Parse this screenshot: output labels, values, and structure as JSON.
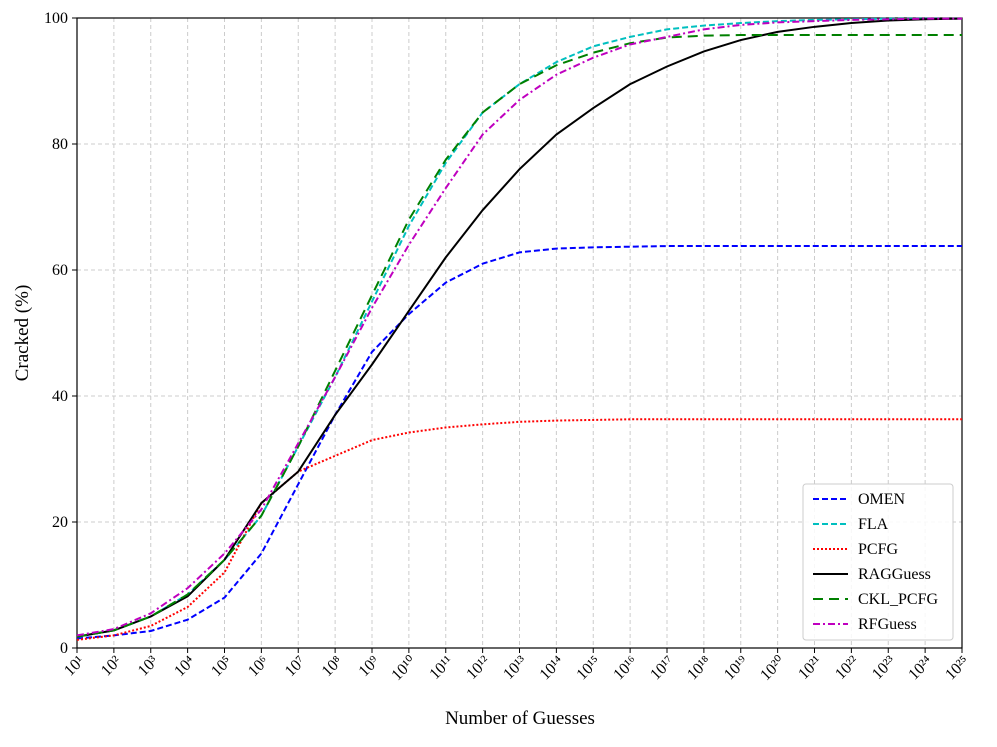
{
  "chart_data": {
    "type": "line",
    "xlabel": "Number of Guesses",
    "ylabel": "Cracked (%)",
    "xscale": "log",
    "grid": true,
    "legend": "lower right",
    "xlim": [
      10,
      1e+25
    ],
    "ylim": [
      0,
      100
    ],
    "yticks": [
      0,
      20,
      40,
      60,
      80,
      100
    ],
    "xticks": [
      {
        "value": 10.0,
        "label": "10¹"
      },
      {
        "value": 100.0,
        "label": "10²"
      },
      {
        "value": 1000.0,
        "label": "10³"
      },
      {
        "value": 10000.0,
        "label": "10⁴"
      },
      {
        "value": 100000.0,
        "label": "10⁵"
      },
      {
        "value": 1000000.0,
        "label": "10⁶"
      },
      {
        "value": 10000000.0,
        "label": "10⁷"
      },
      {
        "value": 100000000.0,
        "label": "10⁸"
      },
      {
        "value": 1000000000.0,
        "label": "10⁹"
      },
      {
        "value": 10000000000.0,
        "label": "10¹⁰"
      },
      {
        "value": 100000000000.0,
        "label": "10¹¹"
      },
      {
        "value": 1000000000000.0,
        "label": "10¹²"
      },
      {
        "value": 10000000000000.0,
        "label": "10¹³"
      },
      {
        "value": 100000000000000.0,
        "label": "10¹⁴"
      },
      {
        "value": 1000000000000000.0,
        "label": "10¹⁵"
      },
      {
        "value": 1e+16,
        "label": "10¹⁶"
      },
      {
        "value": 1e+17,
        "label": "10¹⁷"
      },
      {
        "value": 1e+18,
        "label": "10¹⁸"
      },
      {
        "value": 1e+19,
        "label": "10¹⁹"
      },
      {
        "value": 1e+20,
        "label": "10²⁰"
      },
      {
        "value": 1e+21,
        "label": "10²¹"
      },
      {
        "value": 1e+22,
        "label": "10²²"
      },
      {
        "value": 1e+23,
        "label": "10²³"
      },
      {
        "value": 1e+24,
        "label": "10²⁴"
      },
      {
        "value": 1e+25,
        "label": "10²⁵"
      }
    ],
    "x": [
      10.0,
      100.0,
      1000.0,
      10000.0,
      100000.0,
      1000000.0,
      10000000.0,
      100000000.0,
      1000000000.0,
      10000000000.0,
      100000000000.0,
      1000000000000.0,
      10000000000000.0,
      100000000000000.0,
      1000000000000000.0,
      1e+16,
      1e+17,
      1e+18,
      1e+19,
      1e+20,
      1e+21,
      1e+22,
      1e+23,
      1e+24,
      1e+25
    ],
    "series": [
      {
        "name": "OMEN",
        "color": "#0000ff",
        "linestyle": "dashed",
        "values": [
          1.5,
          2,
          2.7,
          4.5,
          8,
          15,
          26,
          37,
          47,
          53,
          58,
          61,
          62.8,
          63.4,
          63.6,
          63.7,
          63.8,
          63.8,
          63.8,
          63.8,
          63.8,
          63.8,
          63.8,
          63.8,
          63.8
        ]
      },
      {
        "name": "FLA",
        "color": "#00bfbf",
        "linestyle": "dashed",
        "values": [
          1.8,
          2.8,
          5,
          8.5,
          14,
          21,
          32,
          43,
          55,
          67,
          77,
          85,
          89.5,
          93,
          95.5,
          97,
          98.2,
          98.8,
          99.2,
          99.5,
          99.7,
          99.8,
          99.9,
          99.9,
          99.9
        ]
      },
      {
        "name": "PCFG",
        "color": "#ff0000",
        "linestyle": "dotted",
        "values": [
          1.3,
          2,
          3.5,
          6.5,
          12,
          23,
          28,
          30.5,
          33,
          34.2,
          35,
          35.5,
          35.9,
          36.1,
          36.2,
          36.3,
          36.3,
          36.3,
          36.3,
          36.3,
          36.3,
          36.3,
          36.3,
          36.3,
          36.3
        ]
      },
      {
        "name": "RAGGuess",
        "color": "#000000",
        "linestyle": "solid",
        "values": [
          1.8,
          2.8,
          5,
          8.2,
          14,
          23,
          28,
          37,
          45,
          53.5,
          62,
          69.5,
          76,
          81.5,
          85.7,
          89.5,
          92.3,
          94.7,
          96.5,
          97.8,
          98.6,
          99.2,
          99.6,
          99.8,
          99.9
        ]
      },
      {
        "name": "CKL_PCFG",
        "color": "#008000",
        "linestyle": "longdash",
        "values": [
          1.8,
          2.8,
          5,
          8.5,
          14,
          21,
          32,
          44,
          56,
          68,
          77.5,
          85,
          89.5,
          92.5,
          94.5,
          96,
          96.9,
          97.2,
          97.3,
          97.3,
          97.3,
          97.3,
          97.3,
          97.3,
          97.3
        ]
      },
      {
        "name": "RFGuess",
        "color": "#bf00bf",
        "linestyle": "dashdot",
        "values": [
          2,
          3,
          5.5,
          9.5,
          15,
          22,
          32.5,
          43,
          54,
          64,
          73,
          81.5,
          87,
          91,
          93.7,
          95.8,
          97,
          98.2,
          98.9,
          99.3,
          99.5,
          99.7,
          99.8,
          99.9,
          99.9
        ]
      }
    ]
  }
}
